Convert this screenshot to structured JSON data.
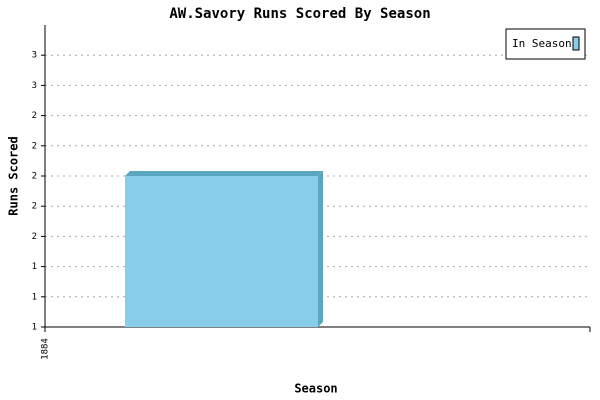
{
  "chart_data": {
    "type": "bar",
    "title": "AW.Savory Runs Scored By Season",
    "x_label": "Season",
    "y_label": "Runs Scored",
    "categories": [
      "1884"
    ],
    "series": [
      {
        "name": "In Season",
        "color": "#87ceeb",
        "values": [
          2
        ]
      }
    ],
    "ylim": [
      1,
      3
    ],
    "yticks": [
      {
        "value": 1,
        "label": "1"
      },
      {
        "value": 1.2,
        "label": "1"
      },
      {
        "value": 1.4,
        "label": "1"
      },
      {
        "value": 1.6,
        "label": "2"
      },
      {
        "value": 1.8,
        "label": "2"
      },
      {
        "value": 2,
        "label": "2"
      },
      {
        "value": 2.2,
        "label": "2"
      },
      {
        "value": 2.4,
        "label": "2"
      },
      {
        "value": 2.6,
        "label": "3"
      },
      {
        "value": 2.8,
        "label": "3"
      }
    ],
    "grid": true,
    "legend": "top-right"
  }
}
